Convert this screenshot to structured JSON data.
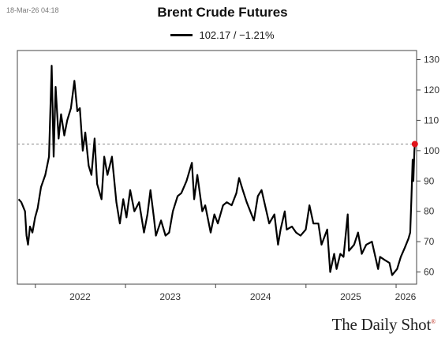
{
  "timestamp": "18-Mar-26 04:18",
  "watermark": "The Daily Shot",
  "chart_data": {
    "type": "line",
    "title": "Brent Crude Futures",
    "legend_position": "top-center",
    "series": [
      {
        "name": "102.17 / −1.21%",
        "color": "#000000",
        "points": [
          [
            "2021-10-25",
            84
          ],
          [
            "2021-11-05",
            83
          ],
          [
            "2021-11-20",
            80
          ],
          [
            "2021-11-26",
            72
          ],
          [
            "2021-12-02",
            69
          ],
          [
            "2021-12-10",
            75
          ],
          [
            "2021-12-20",
            73
          ],
          [
            "2021-12-31",
            78
          ],
          [
            "2022-01-10",
            81
          ],
          [
            "2022-01-24",
            88
          ],
          [
            "2022-02-10",
            92
          ],
          [
            "2022-02-25",
            98
          ],
          [
            "2022-03-08",
            128
          ],
          [
            "2022-03-16",
            98
          ],
          [
            "2022-03-24",
            121
          ],
          [
            "2022-04-05",
            104
          ],
          [
            "2022-04-15",
            112
          ],
          [
            "2022-04-28",
            105
          ],
          [
            "2022-05-10",
            110
          ],
          [
            "2022-05-25",
            114
          ],
          [
            "2022-06-08",
            123
          ],
          [
            "2022-06-20",
            113
          ],
          [
            "2022-06-30",
            114
          ],
          [
            "2022-07-12",
            100
          ],
          [
            "2022-07-22",
            106
          ],
          [
            "2022-08-05",
            95
          ],
          [
            "2022-08-16",
            92
          ],
          [
            "2022-08-29",
            104
          ],
          [
            "2022-09-08",
            89
          ],
          [
            "2022-09-26",
            84
          ],
          [
            "2022-10-07",
            98
          ],
          [
            "2022-10-20",
            92
          ],
          [
            "2022-11-07",
            98
          ],
          [
            "2022-11-25",
            83
          ],
          [
            "2022-12-09",
            76
          ],
          [
            "2022-12-23",
            84
          ],
          [
            "2023-01-05",
            78
          ],
          [
            "2023-01-20",
            87
          ],
          [
            "2023-02-06",
            80
          ],
          [
            "2023-02-25",
            83
          ],
          [
            "2023-03-17",
            73
          ],
          [
            "2023-03-31",
            79
          ],
          [
            "2023-04-12",
            87
          ],
          [
            "2023-04-26",
            78
          ],
          [
            "2023-05-04",
            72
          ],
          [
            "2023-05-25",
            77
          ],
          [
            "2023-06-12",
            72
          ],
          [
            "2023-06-27",
            73
          ],
          [
            "2023-07-12",
            80
          ],
          [
            "2023-07-31",
            85
          ],
          [
            "2023-08-15",
            86
          ],
          [
            "2023-09-05",
            90
          ],
          [
            "2023-09-27",
            96
          ],
          [
            "2023-10-06",
            84
          ],
          [
            "2023-10-19",
            92
          ],
          [
            "2023-11-08",
            80
          ],
          [
            "2023-11-20",
            82
          ],
          [
            "2023-12-12",
            73
          ],
          [
            "2023-12-27",
            79
          ],
          [
            "2024-01-10",
            76
          ],
          [
            "2024-01-31",
            82
          ],
          [
            "2024-02-15",
            83
          ],
          [
            "2024-03-06",
            82
          ],
          [
            "2024-03-25",
            86
          ],
          [
            "2024-04-05",
            91
          ],
          [
            "2024-04-20",
            87
          ],
          [
            "2024-05-06",
            83
          ],
          [
            "2024-06-04",
            77
          ],
          [
            "2024-06-20",
            85
          ],
          [
            "2024-07-05",
            87
          ],
          [
            "2024-08-05",
            76
          ],
          [
            "2024-08-26",
            79
          ],
          [
            "2024-09-10",
            69
          ],
          [
            "2024-09-20",
            74
          ],
          [
            "2024-10-07",
            80
          ],
          [
            "2024-10-15",
            74
          ],
          [
            "2024-11-05",
            75
          ],
          [
            "2024-11-22",
            73
          ],
          [
            "2024-12-10",
            72
          ],
          [
            "2024-12-31",
            74
          ],
          [
            "2025-01-15",
            82
          ],
          [
            "2025-01-31",
            76
          ],
          [
            "2025-02-20",
            76
          ],
          [
            "2025-03-05",
            69
          ],
          [
            "2025-03-28",
            74
          ],
          [
            "2025-04-09",
            60
          ],
          [
            "2025-04-25",
            66
          ],
          [
            "2025-05-05",
            61
          ],
          [
            "2025-05-20",
            66
          ],
          [
            "2025-06-02",
            65
          ],
          [
            "2025-06-19",
            79
          ],
          [
            "2025-06-24",
            67
          ],
          [
            "2025-07-15",
            69
          ],
          [
            "2025-07-31",
            73
          ],
          [
            "2025-08-15",
            66
          ],
          [
            "2025-09-02",
            69
          ],
          [
            "2025-09-25",
            70
          ],
          [
            "2025-10-20",
            61
          ],
          [
            "2025-10-28",
            65
          ],
          [
            "2025-11-15",
            64
          ],
          [
            "2025-12-05",
            63
          ],
          [
            "2025-12-16",
            59
          ],
          [
            "2026-01-05",
            61
          ],
          [
            "2026-01-20",
            65
          ],
          [
            "2026-02-05",
            68
          ],
          [
            "2026-02-20",
            71
          ],
          [
            "2026-02-27",
            73
          ],
          [
            "2026-03-04",
            84
          ],
          [
            "2026-03-09",
            97
          ],
          [
            "2026-03-12",
            90
          ],
          [
            "2026-03-16",
            100
          ],
          [
            "2026-03-18",
            102.17
          ]
        ]
      }
    ],
    "reference_line": {
      "value": 102.17,
      "style": "dashed",
      "color": "#888888"
    },
    "last_point_marker_color": "#e0141b",
    "x_ticks": [
      "2022",
      "2023",
      "2024",
      "2025",
      "2026"
    ],
    "y_ticks": [
      60,
      70,
      80,
      90,
      100,
      110,
      120,
      130
    ],
    "ylim": [
      56,
      133
    ],
    "xlim": [
      "2021-10-20",
      "2026-03-25"
    ],
    "grid": false,
    "y_axis_side": "right"
  }
}
